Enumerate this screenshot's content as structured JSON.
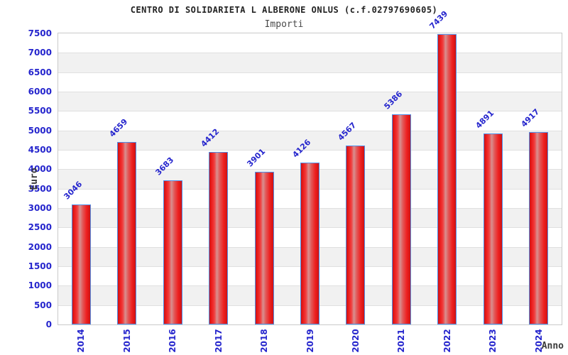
{
  "chart_data": {
    "type": "bar",
    "title": "CENTRO DI SOLIDARIETA L ALBERONE ONLUS (c.f.02797690605)",
    "subtitle": "Importi",
    "xlabel": "Anno",
    "ylabel": "Euro",
    "categories": [
      "2014",
      "2015",
      "2016",
      "2017",
      "2018",
      "2019",
      "2020",
      "2021",
      "2022",
      "2023",
      "2024"
    ],
    "values": [
      3046,
      4659,
      3683,
      4412,
      3901,
      4126,
      4567,
      5386,
      7439,
      4891,
      4917
    ],
    "ylim": [
      0,
      7500
    ],
    "ytick_step": 500,
    "yticks": [
      0,
      500,
      1000,
      1500,
      2000,
      2500,
      3000,
      3500,
      4000,
      4500,
      5000,
      5500,
      6000,
      6500,
      7000,
      7500
    ],
    "grid": "horizontal-bands-alternating",
    "legend": "none",
    "value_label_rotation_deg": -45,
    "x_tick_rotation_deg": -90,
    "colors": {
      "tick_label": "#2525cd",
      "value_label": "#2525cd",
      "title": "#222222",
      "subtitle": "#4a4a4a",
      "axis_title": "#3a3a3a",
      "plot_border": "#c9c9c9",
      "band_gray": "#f1f1f1",
      "band_white": "#ffffff",
      "gridline": "#e0e0e0",
      "bar_border": "#4f8fe8",
      "bar_edge_red": "#cf1212",
      "bar_red": "#ee2020",
      "bar_highlight": "#d89090"
    }
  }
}
